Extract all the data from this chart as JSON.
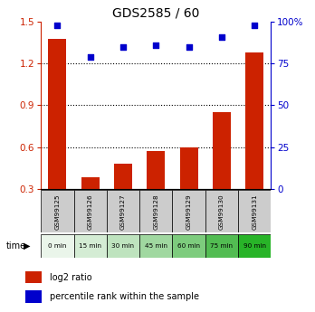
{
  "title": "GDS2585 / 60",
  "samples": [
    "GSM99125",
    "GSM99126",
    "GSM99127",
    "GSM99128",
    "GSM99129",
    "GSM99130",
    "GSM99131"
  ],
  "times": [
    "0 min",
    "15 min",
    "30 min",
    "45 min",
    "60 min",
    "75 min",
    "90 min"
  ],
  "log2_ratio": [
    1.38,
    0.38,
    0.48,
    0.57,
    0.6,
    0.85,
    1.28
  ],
  "percentile_rank": [
    98,
    79,
    85,
    86,
    85,
    91,
    98
  ],
  "bar_color": "#cc2200",
  "dot_color": "#0000cc",
  "ylim_left": [
    0.3,
    1.5
  ],
  "ylim_right": [
    0,
    100
  ],
  "yticks_left": [
    0.3,
    0.6,
    0.9,
    1.2,
    1.5
  ],
  "yticks_right": [
    0,
    25,
    50,
    75,
    100
  ],
  "right_tick_labels": [
    "0",
    "25",
    "50",
    "75",
    "100%"
  ],
  "sample_bg": "#cccccc",
  "time_colors": [
    "#eaf5ea",
    "#d4ecd4",
    "#bee3be",
    "#a0d8a0",
    "#7dcc7d",
    "#52bc52",
    "#28b428"
  ],
  "grid_lines": [
    0.6,
    0.9,
    1.2
  ],
  "legend_red_label": "log2 ratio",
  "legend_blue_label": "percentile rank within the sample"
}
